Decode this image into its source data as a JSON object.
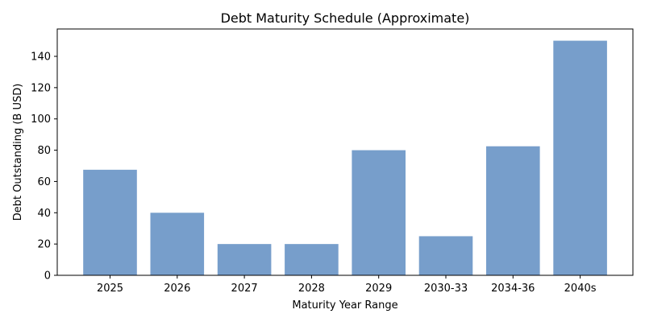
{
  "chart_data": {
    "type": "bar",
    "title": "Debt Maturity Schedule (Approximate)",
    "xlabel": "Maturity Year Range",
    "ylabel": "Debt Outstanding (B USD)",
    "categories": [
      "2025",
      "2026",
      "2027",
      "2028",
      "2029",
      "2030-33",
      "2034-36",
      "2040s"
    ],
    "values": [
      67.5,
      40,
      20,
      20,
      80,
      25,
      82.5,
      150
    ],
    "ylim": [
      0,
      157.5
    ],
    "yticks": [
      0,
      20,
      40,
      60,
      80,
      100,
      120,
      140
    ],
    "grid": false,
    "bar_color": "#779ecb"
  }
}
